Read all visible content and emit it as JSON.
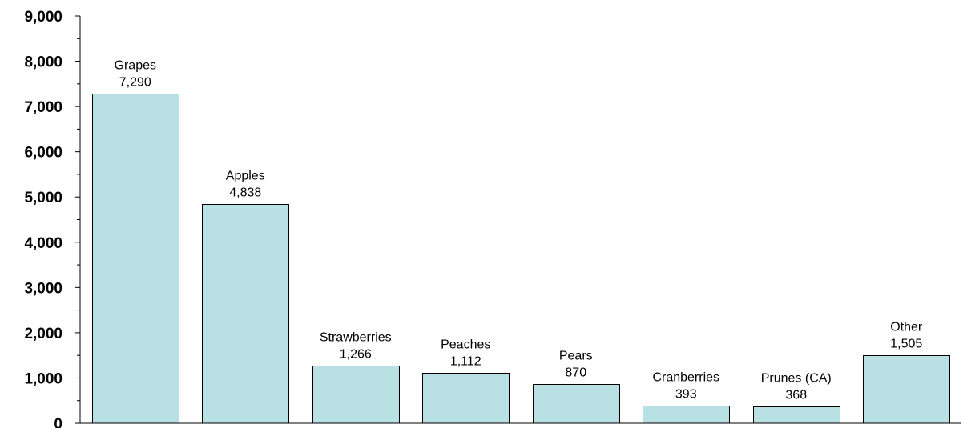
{
  "chart_data": {
    "type": "bar",
    "title": "",
    "xlabel": "",
    "ylabel": "",
    "categories": [
      "Grapes",
      "Apples",
      "Strawberries",
      "Peaches",
      "Pears",
      "Cranberries",
      "Prunes (CA)",
      "Other"
    ],
    "values": [
      7290,
      4838,
      1266,
      1112,
      870,
      393,
      368,
      1505
    ],
    "value_labels": [
      "7,290",
      "4,838",
      "1,266",
      "1,112",
      "870",
      "393",
      "368",
      "1,505"
    ],
    "ylim": [
      0,
      9000
    ],
    "y_ticks": [
      0,
      1000,
      2000,
      3000,
      4000,
      5000,
      6000,
      7000,
      8000,
      9000
    ],
    "y_tick_labels": [
      "0",
      "1,000",
      "2,000",
      "3,000",
      "4,000",
      "5,000",
      "6,000",
      "7,000",
      "8,000",
      "9,000"
    ],
    "y_minor_tick": 500,
    "grid": false,
    "legend": "none",
    "colors": {
      "bar_fill": "#b9e0e3",
      "bar_stroke": "#000000",
      "axis": "#000000"
    }
  }
}
